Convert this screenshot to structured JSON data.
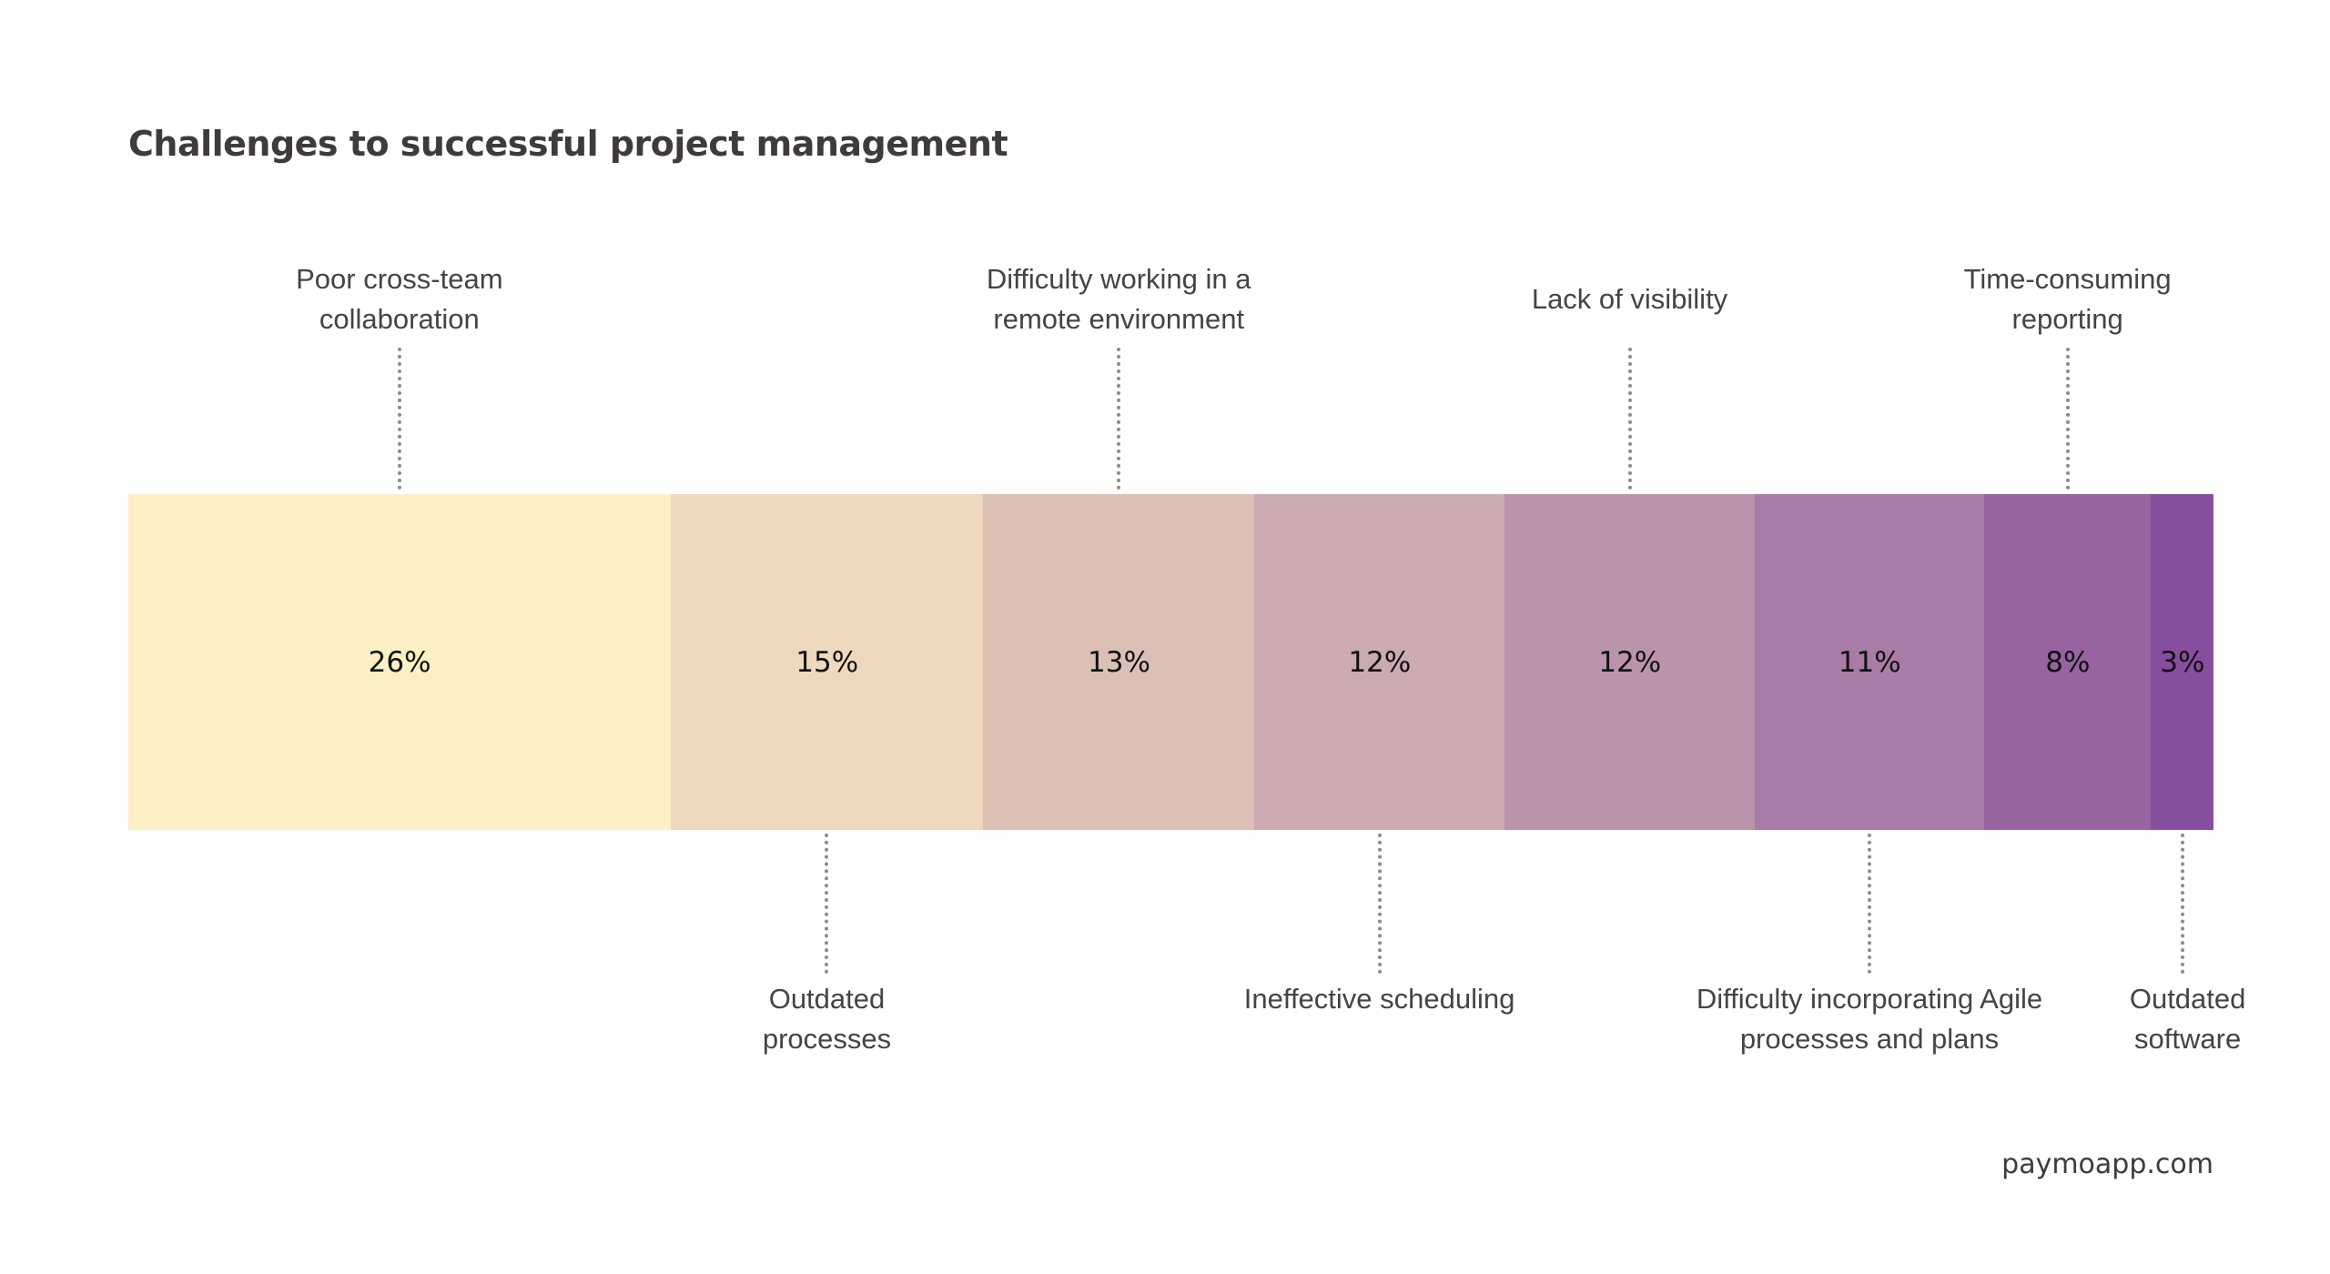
{
  "chart_data": {
    "type": "bar",
    "orientation": "horizontal-stacked-100",
    "title": "Challenges to successful project management",
    "categories": [
      "Poor cross-team collaboration",
      "Outdated processes",
      "Difficulty working in a remote environment",
      "Ineffective scheduling",
      "Lack of visibility",
      "Difficulty incorporating Agile processes and plans",
      "Time-consuming reporting",
      "Outdated software"
    ],
    "label_lines": [
      [
        "Poor cross-team",
        "collaboration"
      ],
      [
        "Outdated",
        "processes"
      ],
      [
        "Difficulty working in a",
        "remote environment"
      ],
      [
        "Ineffective scheduling"
      ],
      [
        "Lack of visibility"
      ],
      [
        "Difficulty incorporating Agile",
        "processes and plans"
      ],
      [
        "Time-consuming",
        "reporting"
      ],
      [
        "Outdated",
        "software"
      ]
    ],
    "label_position": [
      "above",
      "below",
      "above",
      "below",
      "above",
      "below",
      "above",
      "below"
    ],
    "values": [
      26,
      15,
      13,
      12,
      12,
      11,
      8,
      3
    ],
    "value_labels": [
      "26%",
      "15%",
      "13%",
      "12%",
      "12%",
      "11%",
      "8%",
      "3%"
    ],
    "colors": [
      "#FCEFC3",
      "#EFD9BE",
      "#DCC0B5",
      "#CBABB1",
      "#BA93AC",
      "#A77CA7",
      "#9764A1",
      "#874E9E"
    ],
    "xlim": [
      0,
      100
    ],
    "grid": false
  },
  "footer": "paymoapp.com"
}
